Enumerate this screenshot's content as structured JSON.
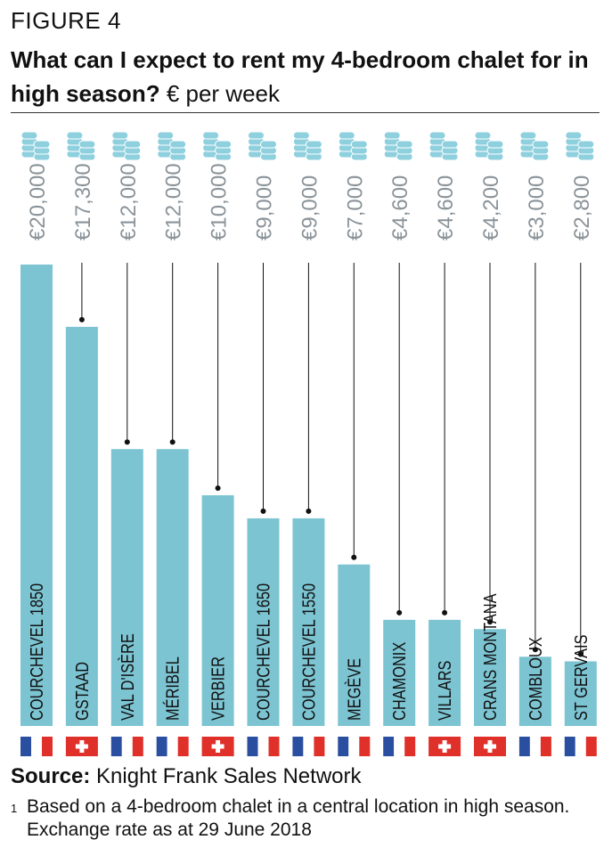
{
  "figure_label": "FIGURE 4",
  "title_bold": "What can I expect to rent my 4-bedroom chalet for in high season?",
  "title_unit": "€ per week",
  "source_label": "Source:",
  "source_text": "Knight Frank Sales Network",
  "footnote_mark": "1",
  "footnote_text": "Based on a 4-bedroom chalet in a central location in high season. Exchange rate as at 29 June 2018",
  "colors": {
    "bar": "#7cc4d2",
    "value_text": "#8a9399",
    "coin_fill": "#8fd0de",
    "coin_stroke": "#ffffff",
    "france_blue": "#2a4fa0",
    "france_red": "#e0302a",
    "swiss_red": "#e0302a"
  },
  "chart_data": {
    "type": "bar",
    "orientation": "vertical",
    "categories": [
      "COURCHEVEL 1850",
      "GSTAAD",
      "VAL D'ISÈRE",
      "MÉRIBEL",
      "VERBIER",
      "COURCHEVEL 1650",
      "COURCHEVEL 1550",
      "MEGÈVE",
      "CHAMONIX",
      "VILLARS",
      "CRANS MONTANA",
      "COMBLOUX",
      "ST GERVAIS"
    ],
    "values": [
      20000,
      17300,
      12000,
      12000,
      10000,
      9000,
      9000,
      7000,
      4600,
      4600,
      4200,
      3000,
      2800
    ],
    "value_labels": [
      "€20,000",
      "€17,300",
      "€12,000",
      "€12,000",
      "€10,000",
      "€9,000",
      "€9,000",
      "€7,000",
      "€4,600",
      "€4,600",
      "€4,200",
      "€3,000",
      "€2,800"
    ],
    "countries": [
      "france",
      "switzerland",
      "france",
      "france",
      "switzerland",
      "france",
      "france",
      "france",
      "france",
      "switzerland",
      "switzerland",
      "france",
      "france"
    ],
    "ylim": [
      0,
      20000
    ],
    "icon": "coin-stack-icon",
    "grid": false
  }
}
